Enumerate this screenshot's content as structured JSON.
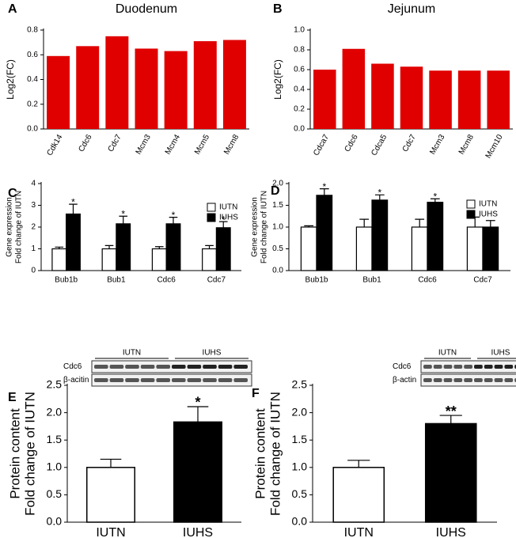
{
  "chart_data": [
    {
      "type": "bar",
      "panel": "A",
      "title": "Duodenum",
      "ylabel": "Log2(FC)",
      "categories": [
        "Cdk14",
        "Cdc6",
        "Cdc7",
        "Mcm3",
        "Mcm4",
        "Mcm5",
        "Mcm8"
      ],
      "values": [
        0.59,
        0.67,
        0.75,
        0.65,
        0.63,
        0.71,
        0.72
      ],
      "color": "#e00000",
      "ylim": [
        0,
        0.8
      ],
      "yticks": [
        {
          "value": 0,
          "label": "0.0"
        },
        0.2,
        0.4,
        0.6,
        0.8
      ]
    },
    {
      "type": "bar",
      "panel": "B",
      "title": "Jejunum",
      "ylabel": "Log2(FC)",
      "categories": [
        "Cdca7",
        "Cdc6",
        "Cdca5",
        "Cdc7",
        "Mcm3",
        "Mcm8",
        "Mcm10"
      ],
      "values": [
        0.6,
        0.81,
        0.66,
        0.63,
        0.59,
        0.59,
        0.59
      ],
      "color": "#e00000",
      "ylim": [
        0,
        1.0
      ],
      "yticks": [
        {
          "value": 0,
          "label": "0.0"
        },
        0.2,
        0.4,
        0.6,
        0.8,
        {
          "value": 1,
          "label": "1.0"
        }
      ]
    },
    {
      "type": "grouped_bar",
      "panel": "C",
      "ylabel": [
        "Gene expression",
        "Fold change of IUTN"
      ],
      "categories": [
        "Bub1b",
        "Bub1",
        "Cdc6",
        "Cdc7"
      ],
      "series": [
        {
          "name": "IUTN",
          "color": "#ffffff",
          "values": [
            1,
            1,
            1,
            1
          ],
          "errors": [
            0.08,
            0.15,
            0.1,
            0.15
          ]
        },
        {
          "name": "IUHS",
          "color": "#000000",
          "values": [
            2.6,
            2.15,
            2.15,
            1.97
          ],
          "errors": [
            0.45,
            0.35,
            0.3,
            0.28
          ],
          "annotations": [
            "*",
            "*",
            "*",
            "*"
          ]
        }
      ],
      "ylim": [
        0,
        4
      ],
      "yticks": [
        0,
        1,
        2,
        3,
        4
      ],
      "legend": "top-right"
    },
    {
      "type": "grouped_bar",
      "panel": "D",
      "ylabel": [
        "Gene expression",
        "Fold change of IUTN"
      ],
      "categories": [
        "Bub1b",
        "Bub1",
        "Cdc6",
        "Cdc7"
      ],
      "series": [
        {
          "name": "IUTN",
          "color": "#ffffff",
          "values": [
            1,
            1,
            1,
            1
          ],
          "errors": [
            0.03,
            0.18,
            0.18,
            0.23
          ]
        },
        {
          "name": "IUHS",
          "color": "#000000",
          "values": [
            1.73,
            1.62,
            1.57,
            1.0
          ],
          "errors": [
            0.15,
            0.12,
            0.08,
            0.15
          ],
          "annotations": [
            "*",
            "*",
            "*",
            null
          ]
        }
      ],
      "ylim": [
        0,
        2.0
      ],
      "yticks": [
        {
          "value": 0,
          "label": "0.0"
        },
        0.5,
        {
          "value": 1,
          "label": "1.0"
        },
        1.5,
        {
          "value": 2,
          "label": "2.0"
        }
      ],
      "legend": "top-right"
    },
    {
      "type": "bar",
      "panel": "E",
      "ylabel": [
        "Protein content",
        "Fold change of IUTN"
      ],
      "categories": [
        "IUTN",
        "IUHS"
      ],
      "values": [
        1.0,
        1.83
      ],
      "errors": [
        0.15,
        0.28
      ],
      "colors": [
        "#ffffff",
        "#000000"
      ],
      "annotations": [
        null,
        "*"
      ],
      "ylim": [
        0,
        2.5
      ],
      "yticks": [
        {
          "value": 0,
          "label": "0.0"
        },
        0.5,
        {
          "value": 1,
          "label": "1.0"
        },
        1.5,
        {
          "value": 2,
          "label": "2.0"
        },
        2.5
      ],
      "blot": {
        "rows": [
          "Cdc6",
          "β-acitin"
        ],
        "groups": [
          "IUTN",
          "IUHS"
        ]
      }
    },
    {
      "type": "bar",
      "panel": "F",
      "ylabel": [
        "Protein content",
        "Fold change of IUTN"
      ],
      "categories": [
        "IUTN",
        "IUHS"
      ],
      "values": [
        1.0,
        1.8
      ],
      "errors": [
        0.13,
        0.15
      ],
      "colors": [
        "#ffffff",
        "#000000"
      ],
      "annotations": [
        null,
        "**"
      ],
      "ylim": [
        0,
        2.5
      ],
      "yticks": [
        {
          "value": 0,
          "label": "0.0"
        },
        0.5,
        {
          "value": 1,
          "label": "1.0"
        },
        1.5,
        {
          "value": 2,
          "label": "2.0"
        },
        2.5
      ],
      "blot": {
        "rows": [
          "Cdc6",
          "β-actin"
        ],
        "groups": [
          "IUTN",
          "IUHS"
        ]
      }
    }
  ]
}
